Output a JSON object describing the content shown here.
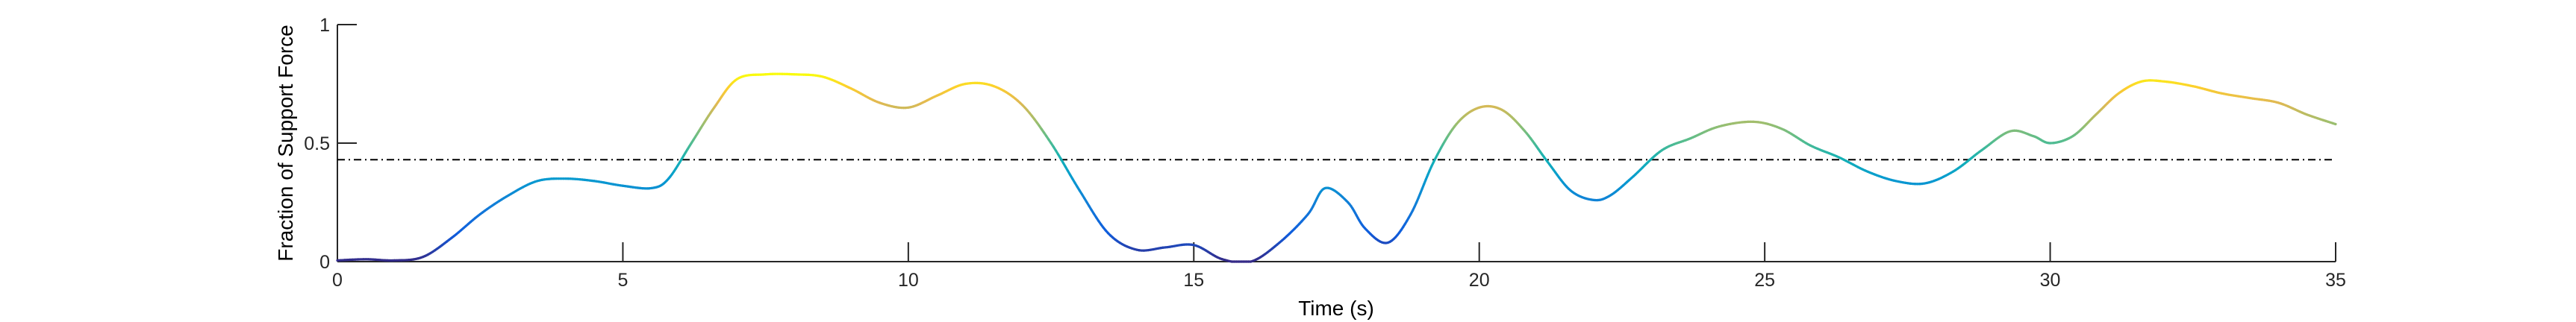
{
  "chart_data": {
    "type": "line",
    "title": "",
    "xlabel": "Time (s)",
    "ylabel": "Fraction of Support Force",
    "xlim": [
      0,
      35
    ],
    "ylim": [
      0,
      1
    ],
    "xticks": [
      0,
      5,
      10,
      15,
      20,
      25,
      30,
      35
    ],
    "yticks": [
      0,
      0.5,
      1
    ],
    "grid": false,
    "box": false,
    "colormap": "parula",
    "color_by": "y",
    "reference_line": {
      "y": 0.43,
      "style": "dash-dot",
      "color": "#000000"
    },
    "series": [
      {
        "x": [
          0,
          0.5,
          1.0,
          1.5,
          2.0,
          2.5,
          3.0,
          3.5,
          4.0,
          4.5,
          5.0,
          5.5,
          5.8,
          6.2,
          6.6,
          7.0,
          7.5,
          8.0,
          8.5,
          9.0,
          9.5,
          10.0,
          10.5,
          11.0,
          11.5,
          12.0,
          12.5,
          13.0,
          13.5,
          14.0,
          14.5,
          15.0,
          15.5,
          16.0,
          16.5,
          17.0,
          17.3,
          17.7,
          18.0,
          18.4,
          18.8,
          19.2,
          19.6,
          20.0,
          20.4,
          20.8,
          21.2,
          21.6,
          22.0,
          22.3,
          22.7,
          23.2,
          23.7,
          24.2,
          24.8,
          25.3,
          25.8,
          26.3,
          26.8,
          27.3,
          27.8,
          28.3,
          28.8,
          29.3,
          29.7,
          30.0,
          30.4,
          30.8,
          31.2,
          31.6,
          32.0,
          32.5,
          33.0,
          33.5,
          34.0,
          34.5,
          35.0
        ],
        "y": [
          0.005,
          0.01,
          0.005,
          0.02,
          0.1,
          0.2,
          0.28,
          0.34,
          0.35,
          0.34,
          0.32,
          0.31,
          0.35,
          0.5,
          0.65,
          0.77,
          0.79,
          0.79,
          0.78,
          0.73,
          0.67,
          0.65,
          0.7,
          0.75,
          0.74,
          0.66,
          0.5,
          0.3,
          0.12,
          0.05,
          0.06,
          0.07,
          0.01,
          0.0,
          0.08,
          0.2,
          0.31,
          0.25,
          0.14,
          0.08,
          0.2,
          0.42,
          0.58,
          0.65,
          0.64,
          0.55,
          0.42,
          0.3,
          0.26,
          0.28,
          0.36,
          0.47,
          0.52,
          0.57,
          0.59,
          0.56,
          0.49,
          0.44,
          0.38,
          0.34,
          0.33,
          0.38,
          0.47,
          0.55,
          0.53,
          0.5,
          0.53,
          0.62,
          0.71,
          0.76,
          0.76,
          0.74,
          0.71,
          0.69,
          0.67,
          0.62,
          0.58
        ]
      }
    ]
  }
}
